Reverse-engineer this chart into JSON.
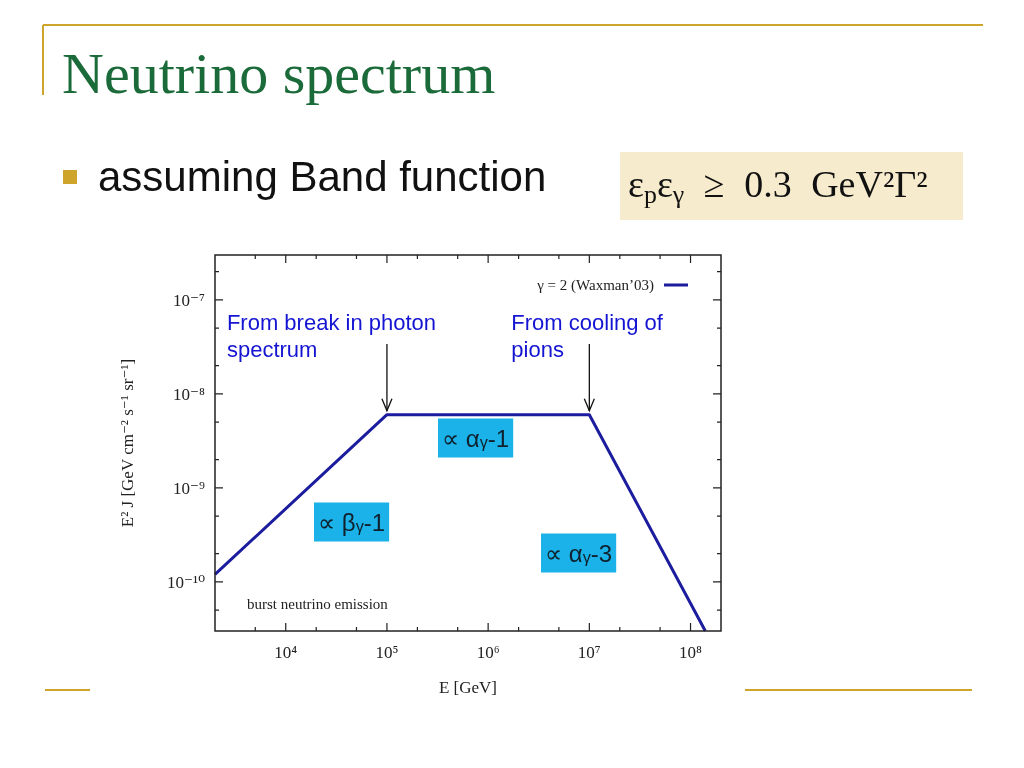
{
  "chart_data": {
    "type": "line",
    "title": "Neutrino spectrum",
    "subtitle": "assuming Band function",
    "xlabel": "E [GeV]",
    "ylabel": "E² J [GeV cm⁻² s⁻¹ sr⁻¹]",
    "series": [
      {
        "name": "γ = 2 (Waxman’03)",
        "color": "#1c1c9e",
        "x": [
          2000,
          100000,
          10000000,
          140000000
        ],
        "values": [
          1.2e-10,
          6e-09,
          6e-09,
          3e-11
        ]
      }
    ],
    "log": "xy",
    "xlim": [
      2000,
      200000000
    ],
    "ylim": [
      3e-11,
      3e-07
    ],
    "xticks": [
      {
        "value": 5000,
        "label": null
      },
      {
        "value": 10000,
        "label": "10⁴"
      },
      {
        "value": 20000,
        "label": null
      },
      {
        "value": 50000,
        "label": null
      },
      {
        "value": 100000,
        "label": "10⁵"
      },
      {
        "value": 200000,
        "label": null
      },
      {
        "value": 500000,
        "label": null
      },
      {
        "value": 1000000,
        "label": "10⁶"
      },
      {
        "value": 2000000,
        "label": null
      },
      {
        "value": 5000000,
        "label": null
      },
      {
        "value": 10000000,
        "label": "10⁷"
      },
      {
        "value": 20000000,
        "label": null
      },
      {
        "value": 50000000,
        "label": null
      },
      {
        "value": 100000000,
        "label": "10⁸"
      }
    ],
    "yticks": [
      {
        "value": 5e-11,
        "label": null
      },
      {
        "value": 1e-10,
        "label": "10⁻¹⁰"
      },
      {
        "value": 2e-10,
        "label": null
      },
      {
        "value": 5e-10,
        "label": null
      },
      {
        "value": 1e-09,
        "label": "10⁻⁹"
      },
      {
        "value": 2e-09,
        "label": null
      },
      {
        "value": 5e-09,
        "label": null
      },
      {
        "value": 1e-08,
        "label": "10⁻⁸"
      },
      {
        "value": 2e-08,
        "label": null
      },
      {
        "value": 5e-08,
        "label": null
      },
      {
        "value": 1e-07,
        "label": "10⁻⁷"
      },
      {
        "value": 2e-07,
        "label": null
      }
    ],
    "legend": "top right",
    "annotations": [
      "ε$_{p}$ε$_{γ}$ ≥ 0.3 GeV²Γ²",
      {
        "text": "From break in photon\nspectrum",
        "x": 100000,
        "y": 6e-09
      },
      {
        "text": "From cooling of\npions",
        "x": 10000000,
        "y": 6e-09
      },
      "∝ α$_{γ}$-1",
      "∝ β$_{γ}$-1",
      "∝ α$_{γ}$-3",
      "burst neutrino emission"
    ]
  }
}
